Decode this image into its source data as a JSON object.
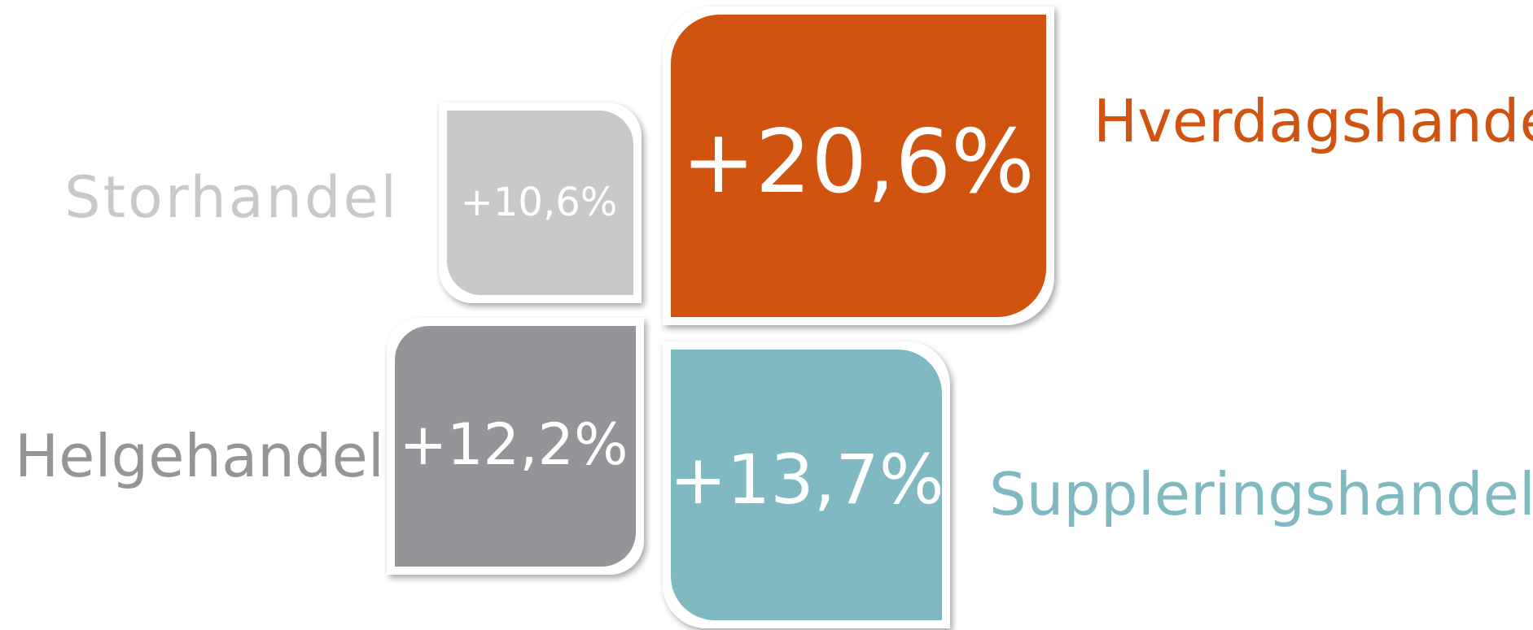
{
  "items": [
    {
      "label": "Hverdagshandel",
      "value": "+20,6%"
    },
    {
      "label": "Storhandel",
      "value": "+10,6%"
    },
    {
      "label": "Helgehandel",
      "value": "+12,2%"
    },
    {
      "label": "Suppleringshandel",
      "value": "+13,7%"
    }
  ]
}
